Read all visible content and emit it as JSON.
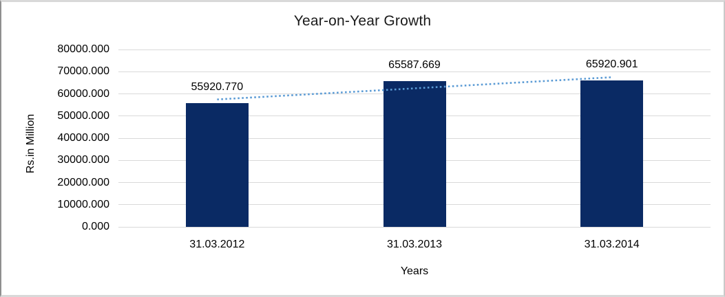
{
  "chart_data": {
    "type": "bar",
    "title": "Year-on-Year Growth",
    "xlabel": "Years",
    "ylabel": "Rs.in Million",
    "categories": [
      "31.03.2012",
      "31.03.2013",
      "31.03.2014"
    ],
    "values": [
      55920.77,
      65587.669,
      65920.901
    ],
    "value_labels": [
      "55920.770",
      "65587.669",
      "65920.901"
    ],
    "ylim": [
      0,
      80000
    ],
    "ytick_step": 10000,
    "ytick_labels": [
      "0.000",
      "10000.000",
      "20000.000",
      "30000.000",
      "40000.000",
      "50000.000",
      "60000.000",
      "70000.000",
      "80000.000"
    ],
    "grid": "horizontal",
    "legend": "none",
    "bar_color": "#0a2a64",
    "gridline_color": "#d9d9d9",
    "trendline": {
      "type": "linear",
      "style": "dotted",
      "color": "#5b9bd5"
    }
  }
}
